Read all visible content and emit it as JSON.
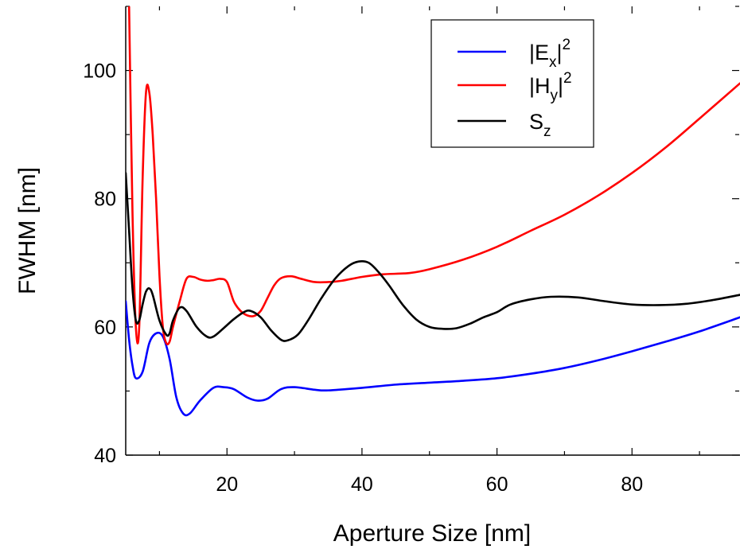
{
  "chart_data": {
    "type": "line",
    "title": "",
    "xlabel": "Aperture Size [nm]",
    "ylabel": "FWHM [nm]",
    "xlim": [
      5,
      96
    ],
    "ylim": [
      40,
      110
    ],
    "xticks": [
      20,
      40,
      60,
      80
    ],
    "yticks": [
      40,
      60,
      80,
      100
    ],
    "grid": false,
    "legend_position": "top-right",
    "series": [
      {
        "name": "|E_x|^2",
        "legend": {
          "base": "|E",
          "sub": "x",
          "close": "|",
          "sup": "2"
        },
        "color": "#0000ff",
        "points": [
          [
            5,
            64
          ],
          [
            5.5,
            58
          ],
          [
            6,
            54
          ],
          [
            6.5,
            52
          ],
          [
            7.5,
            53
          ],
          [
            8.5,
            57.5
          ],
          [
            9.5,
            59
          ],
          [
            10.5,
            58.5
          ],
          [
            11.5,
            55
          ],
          [
            12.5,
            49
          ],
          [
            13.5,
            46.5
          ],
          [
            14.5,
            46.5
          ],
          [
            16,
            48.5
          ],
          [
            18,
            50.5
          ],
          [
            19.5,
            50.6
          ],
          [
            21,
            50.3
          ],
          [
            23,
            49
          ],
          [
            24.5,
            48.5
          ],
          [
            26,
            48.8
          ],
          [
            28,
            50.3
          ],
          [
            30,
            50.6
          ],
          [
            33,
            50.2
          ],
          [
            35,
            50.1
          ],
          [
            40,
            50.5
          ],
          [
            45,
            51
          ],
          [
            50,
            51.3
          ],
          [
            55,
            51.6
          ],
          [
            60,
            52
          ],
          [
            65,
            52.7
          ],
          [
            70,
            53.6
          ],
          [
            75,
            54.8
          ],
          [
            80,
            56.2
          ],
          [
            85,
            57.7
          ],
          [
            90,
            59.3
          ],
          [
            96,
            61.5
          ]
        ]
      },
      {
        "name": "|H_y|^2",
        "legend": {
          "base": "|H",
          "sub": "y",
          "close": "|",
          "sup": "2"
        },
        "color": "#ff0000",
        "points": [
          [
            5.5,
            110
          ],
          [
            6,
            78
          ],
          [
            6.5,
            60
          ],
          [
            7,
            60
          ],
          [
            7.5,
            83
          ],
          [
            8,
            96.5
          ],
          [
            8.5,
            96.5
          ],
          [
            9,
            90
          ],
          [
            9.5,
            80
          ],
          [
            10,
            68
          ],
          [
            10.5,
            60
          ],
          [
            11,
            57.5
          ],
          [
            11.5,
            57.7
          ],
          [
            12,
            60
          ],
          [
            13,
            64
          ],
          [
            14,
            67.5
          ],
          [
            15,
            67.8
          ],
          [
            16,
            67.4
          ],
          [
            17,
            67.2
          ],
          [
            18,
            67.3
          ],
          [
            19,
            67.5
          ],
          [
            20,
            67
          ],
          [
            21,
            64
          ],
          [
            22,
            62.5
          ],
          [
            23,
            61.8
          ],
          [
            24,
            61.7
          ],
          [
            25,
            62.5
          ],
          [
            26,
            64.5
          ],
          [
            27,
            66.5
          ],
          [
            28,
            67.6
          ],
          [
            29.5,
            67.9
          ],
          [
            31,
            67.5
          ],
          [
            33,
            67
          ],
          [
            35,
            67
          ],
          [
            37,
            67.2
          ],
          [
            40,
            67.8
          ],
          [
            43,
            68.2
          ],
          [
            47,
            68.4
          ],
          [
            50,
            69
          ],
          [
            55,
            70.5
          ],
          [
            60,
            72.5
          ],
          [
            65,
            75
          ],
          [
            70,
            77.5
          ],
          [
            75,
            80.5
          ],
          [
            80,
            84
          ],
          [
            85,
            88
          ],
          [
            90,
            92.5
          ],
          [
            96,
            98
          ]
        ]
      },
      {
        "name": "S_z",
        "legend": {
          "base": "S",
          "sub": "z",
          "close": "",
          "sup": ""
        },
        "color": "#000000",
        "points": [
          [
            5,
            84
          ],
          [
            5.5,
            75
          ],
          [
            6,
            66
          ],
          [
            6.5,
            61
          ],
          [
            7,
            61
          ],
          [
            7.5,
            63.5
          ],
          [
            8,
            65.5
          ],
          [
            8.5,
            66
          ],
          [
            9,
            65
          ],
          [
            10,
            61
          ],
          [
            11,
            58.8
          ],
          [
            11.5,
            59
          ],
          [
            12,
            61
          ],
          [
            13,
            63
          ],
          [
            14,
            62.5
          ],
          [
            15.5,
            60
          ],
          [
            17,
            58.5
          ],
          [
            18,
            58.5
          ],
          [
            19.5,
            59.8
          ],
          [
            21,
            61.2
          ],
          [
            22.5,
            62.3
          ],
          [
            23.5,
            62.5
          ],
          [
            25,
            61.5
          ],
          [
            26.5,
            59.5
          ],
          [
            28,
            58
          ],
          [
            29,
            57.9
          ],
          [
            30.5,
            58.8
          ],
          [
            32,
            61
          ],
          [
            34,
            64.5
          ],
          [
            36,
            67.5
          ],
          [
            38,
            69.5
          ],
          [
            39.5,
            70.2
          ],
          [
            41,
            70
          ],
          [
            42.5,
            68.5
          ],
          [
            44,
            66.5
          ],
          [
            46,
            63.5
          ],
          [
            48,
            61.2
          ],
          [
            50,
            60
          ],
          [
            52,
            59.7
          ],
          [
            54,
            59.8
          ],
          [
            56,
            60.5
          ],
          [
            58,
            61.5
          ],
          [
            60,
            62.3
          ],
          [
            62,
            63.5
          ],
          [
            65,
            64.3
          ],
          [
            68,
            64.7
          ],
          [
            72,
            64.6
          ],
          [
            76,
            64
          ],
          [
            80,
            63.5
          ],
          [
            84,
            63.4
          ],
          [
            88,
            63.6
          ],
          [
            92,
            64.2
          ],
          [
            96,
            65
          ]
        ]
      }
    ]
  }
}
